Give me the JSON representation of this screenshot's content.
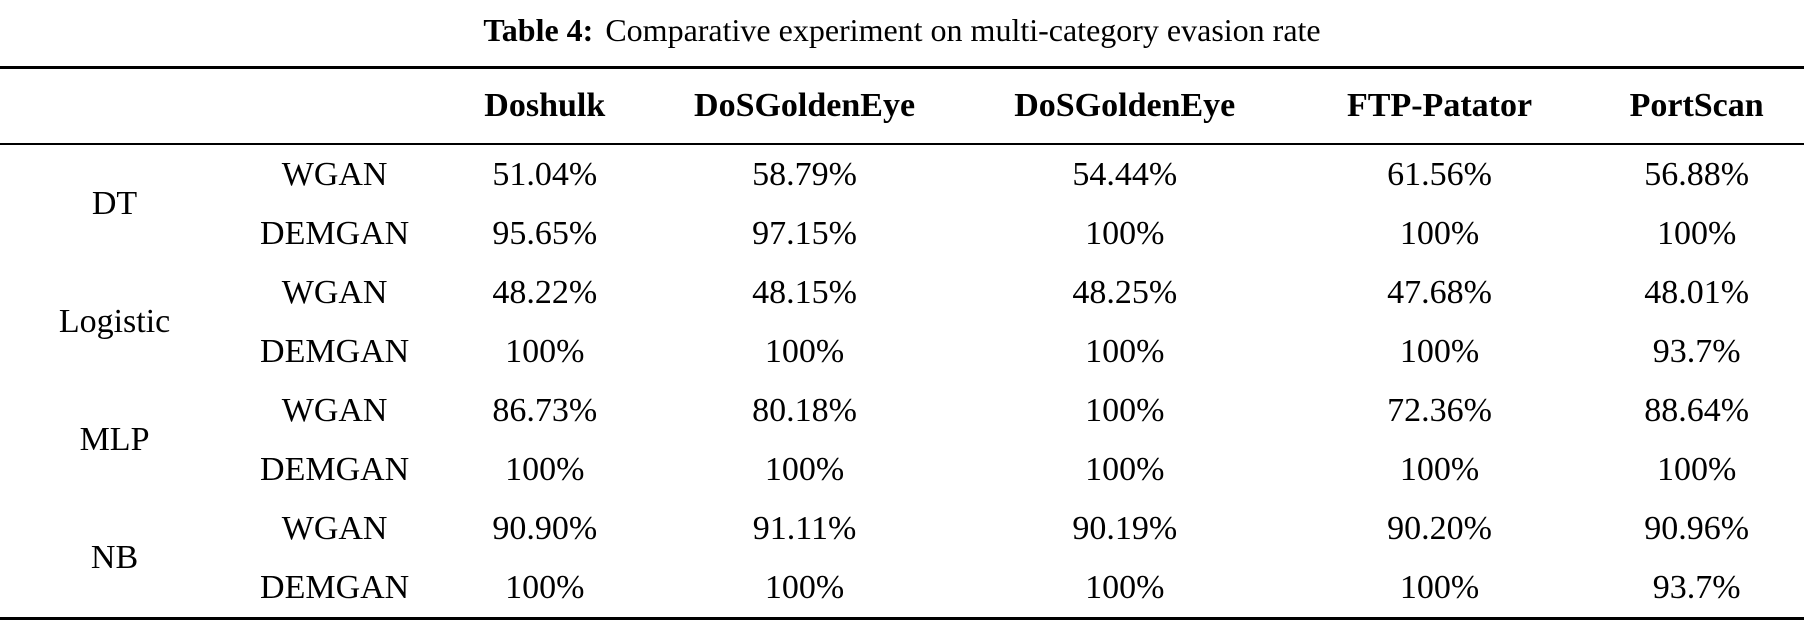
{
  "caption": {
    "label": "Table 4:",
    "text": "Comparative experiment on multi-category evasion rate"
  },
  "chart_data": {
    "type": "table",
    "title": "Table 4: Comparative experiment on multi-category evasion rate",
    "value_unit": "evasion rate (%)",
    "column_headers": [
      "Doshulk",
      "DoSGoldenEye",
      "DoSGoldenEye",
      "FTP-Patator",
      "PortScan"
    ],
    "row_groups": [
      {
        "classifier": "DT",
        "rows": [
          {
            "method": "WGAN",
            "values": [
              "51.04%",
              "58.79%",
              "54.44%",
              "61.56%",
              "56.88%"
            ]
          },
          {
            "method": "DEMGAN",
            "values": [
              "95.65%",
              "97.15%",
              "100%",
              "100%",
              "100%"
            ]
          }
        ]
      },
      {
        "classifier": "Logistic",
        "rows": [
          {
            "method": "WGAN",
            "values": [
              "48.22%",
              "48.15%",
              "48.25%",
              "47.68%",
              "48.01%"
            ]
          },
          {
            "method": "DEMGAN",
            "values": [
              "100%",
              "100%",
              "100%",
              "100%",
              "93.7%"
            ]
          }
        ]
      },
      {
        "classifier": "MLP",
        "rows": [
          {
            "method": "WGAN",
            "values": [
              "86.73%",
              "80.18%",
              "100%",
              "72.36%",
              "88.64%"
            ]
          },
          {
            "method": "DEMGAN",
            "values": [
              "100%",
              "100%",
              "100%",
              "100%",
              "100%"
            ]
          }
        ]
      },
      {
        "classifier": "NB",
        "rows": [
          {
            "method": "WGAN",
            "values": [
              "90.90%",
              "91.11%",
              "90.19%",
              "90.20%",
              "90.96%"
            ]
          },
          {
            "method": "DEMGAN",
            "values": [
              "100%",
              "100%",
              "100%",
              "100%",
              "93.7%"
            ]
          }
        ]
      }
    ]
  }
}
